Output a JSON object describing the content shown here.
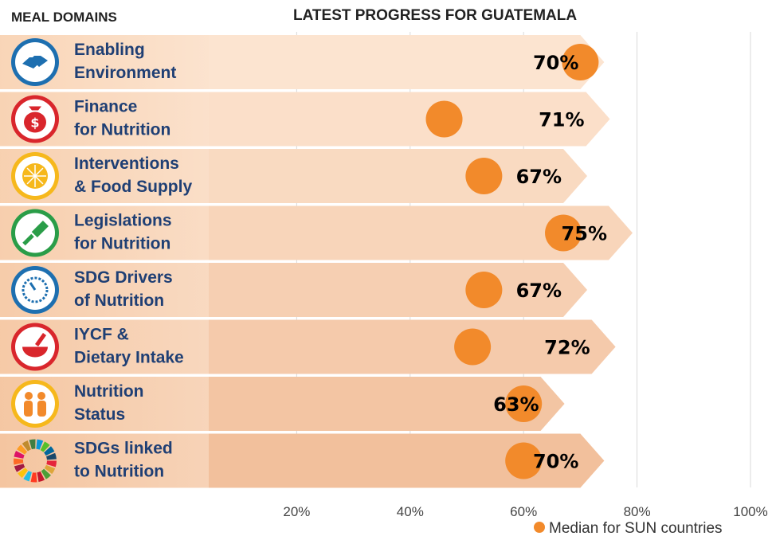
{
  "header": {
    "left_label": "MEAL DOMAINS",
    "title": "LATEST PROGRESS FOR GUATEMALA"
  },
  "chart_data": {
    "type": "bar",
    "orientation": "horizontal",
    "title": "LATEST PROGRESS FOR GUATEMALA",
    "categories": [
      "Enabling Environment",
      "Finance for Nutrition",
      "Interventions & Food Supply",
      "Legislations for Nutrition",
      "SDG Drivers of Nutrition",
      "IYCF & Dietary Intake",
      "Nutrition Status",
      "SDGs linked to Nutrition"
    ],
    "category_lines": [
      [
        "Enabling",
        "Environment"
      ],
      [
        "Finance",
        "for Nutrition"
      ],
      [
        "Interventions",
        "& Food Supply"
      ],
      [
        "Legislations",
        "for Nutrition"
      ],
      [
        "SDG Drivers",
        "of Nutrition"
      ],
      [
        "IYCF &",
        "Dietary Intake"
      ],
      [
        "Nutrition",
        "Status"
      ],
      [
        "SDGs linked",
        "to Nutrition"
      ]
    ],
    "values": [
      70,
      71,
      67,
      75,
      67,
      72,
      63,
      70
    ],
    "data_labels": [
      "70%",
      "71%",
      "67%",
      "75%",
      "67%",
      "72%",
      "63%",
      "70%"
    ],
    "series": [
      {
        "values": [
          70,
          71,
          67,
          75,
          67,
          72,
          63,
          70
        ]
      },
      {
        "name": "Median for SUN countries",
        "marker": "dot",
        "values": [
          70,
          46,
          53,
          67,
          53,
          51,
          60,
          60
        ]
      }
    ],
    "x_ticks": [
      "20%",
      "40%",
      "60%",
      "80%",
      "100%"
    ],
    "x_tick_values": [
      20,
      40,
      60,
      80,
      100
    ],
    "xlim": [
      0,
      100
    ],
    "grid": true,
    "legend": {
      "position": "bottom-right",
      "label": "Median for SUN countries"
    },
    "icons": [
      "handshake-icon",
      "money-bag-icon",
      "citrus-icon",
      "gavel-icon",
      "gauge-icon",
      "mortar-pestle-icon",
      "family-icon",
      "sdg-wheel-icon"
    ],
    "colors": {
      "icon_rings": [
        "#1d6fb0",
        "#d9262c",
        "#f6b81c",
        "#2a9d48",
        "#1d6fb0",
        "#d9262c",
        "#f6b81c",
        "#888888"
      ],
      "marker": "#f28a2b",
      "grid": "#d9d9d9"
    }
  }
}
